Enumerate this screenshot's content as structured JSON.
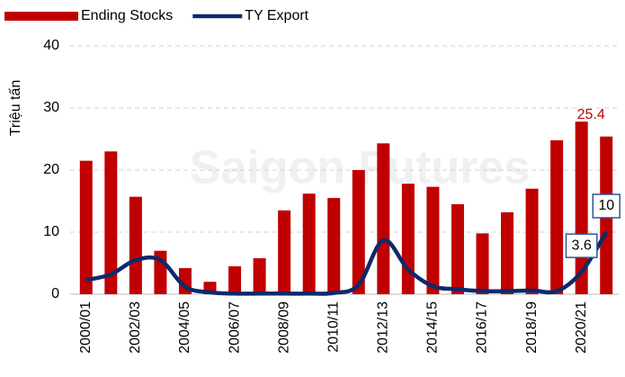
{
  "chart_data": {
    "type": "bar_line",
    "y_axis_label": "Triệu tấn",
    "watermark": "Saigon Futures",
    "categories": [
      "2000/01",
      null,
      "2002/03",
      null,
      "2004/05",
      null,
      "2006/07",
      null,
      "2008/09",
      null,
      "2010/11",
      null,
      "2012/13",
      null,
      "2014/15",
      null,
      "2016/17",
      null,
      "2018/19",
      null,
      "2020/21",
      null
    ],
    "series": [
      {
        "name": "Ending Stocks",
        "type": "bar",
        "color": "#c00000",
        "values": [
          21.5,
          23,
          15.7,
          7,
          4.2,
          2,
          4.5,
          5.8,
          13.5,
          16.2,
          15.5,
          20,
          24.3,
          17.8,
          17.3,
          14.5,
          9.8,
          13.2,
          17,
          24.8,
          27.8,
          25.4
        ],
        "value_labels": [
          null,
          null,
          null,
          null,
          null,
          null,
          null,
          null,
          null,
          null,
          null,
          null,
          null,
          null,
          null,
          null,
          null,
          null,
          null,
          null,
          null,
          "25.4"
        ]
      },
      {
        "name": "TY Export",
        "type": "line",
        "color": "#0d2a6b",
        "values": [
          2.3,
          3.2,
          5.5,
          5.5,
          1.2,
          0.3,
          0.1,
          0.1,
          0.1,
          0.1,
          0.2,
          1.5,
          8.7,
          4,
          1.3,
          0.8,
          0.5,
          0.5,
          0.6,
          0.5,
          3.6,
          10
        ],
        "value_labels": [
          null,
          null,
          null,
          null,
          null,
          null,
          null,
          null,
          null,
          null,
          null,
          null,
          null,
          null,
          null,
          null,
          null,
          null,
          null,
          null,
          "3.6",
          "10"
        ]
      }
    ],
    "ylim": [
      0,
      40
    ],
    "yticks": [
      0,
      10,
      20,
      30,
      40
    ],
    "grid": true,
    "legend": "top"
  }
}
